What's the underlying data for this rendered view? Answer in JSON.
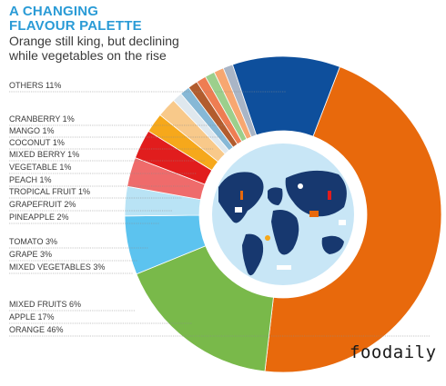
{
  "header": {
    "title_line1": "A CHANGING",
    "title_line2": "FLAVOUR PALETTE",
    "subtitle_line1": "Orange still king, but declining",
    "subtitle_line2": "while vegetables on the rise"
  },
  "watermark": "foodaily",
  "chart_data": {
    "type": "pie",
    "style": "donut",
    "center_image": "world-map-globe",
    "unit": "%",
    "slices": [
      {
        "label": "ORANGE 46%",
        "name": "ORANGE",
        "value": 46,
        "color": "#e8690c"
      },
      {
        "label": "APPLE 17%",
        "name": "APPLE",
        "value": 17,
        "color": "#79b94a"
      },
      {
        "label": "MIXED FRUITS 6%",
        "name": "MIXED FRUITS",
        "value": 6,
        "color": "#5cc3ef"
      },
      {
        "label": "MIXED VEGETABLES 3%",
        "name": "MIXED VEGETABLES",
        "value": 3,
        "color": "#b9e3f5"
      },
      {
        "label": "GRAPE 3%",
        "name": "GRAPE",
        "value": 3,
        "color": "#ef6b6b"
      },
      {
        "label": "TOMATO 3%",
        "name": "TOMATO",
        "value": 3,
        "color": "#e11d1d"
      },
      {
        "label": "PINEAPPLE 2%",
        "name": "PINEAPPLE",
        "value": 2,
        "color": "#f6a81b"
      },
      {
        "label": "GRAPEFRUIT 2%",
        "name": "GRAPEFRUIT",
        "value": 2,
        "color": "#f8c98a"
      },
      {
        "label": "TROPICAL FRUIT 1%",
        "name": "TROPICAL FRUIT",
        "value": 1,
        "color": "#dfe8ee"
      },
      {
        "label": "PEACH 1%",
        "name": "PEACH",
        "value": 1,
        "color": "#86b8d6"
      },
      {
        "label": "VEGETABLE 1%",
        "name": "VEGETABLE",
        "value": 1,
        "color": "#b25c2e"
      },
      {
        "label": "MIXED BERRY 1%",
        "name": "MIXED BERRY",
        "value": 1,
        "color": "#ee7d52"
      },
      {
        "label": "COCONUT 1%",
        "name": "COCONUT",
        "value": 1,
        "color": "#9ccf8c"
      },
      {
        "label": "MANGO 1%",
        "name": "MANGO",
        "value": 1,
        "color": "#f7a771"
      },
      {
        "label": "CRANBERRY 1%",
        "name": "CRANBERRY",
        "value": 1,
        "color": "#a9b5c6"
      },
      {
        "label": "OTHERS 11%",
        "name": "OTHERS",
        "value": 11,
        "color": "#0e4f9c"
      }
    ]
  }
}
